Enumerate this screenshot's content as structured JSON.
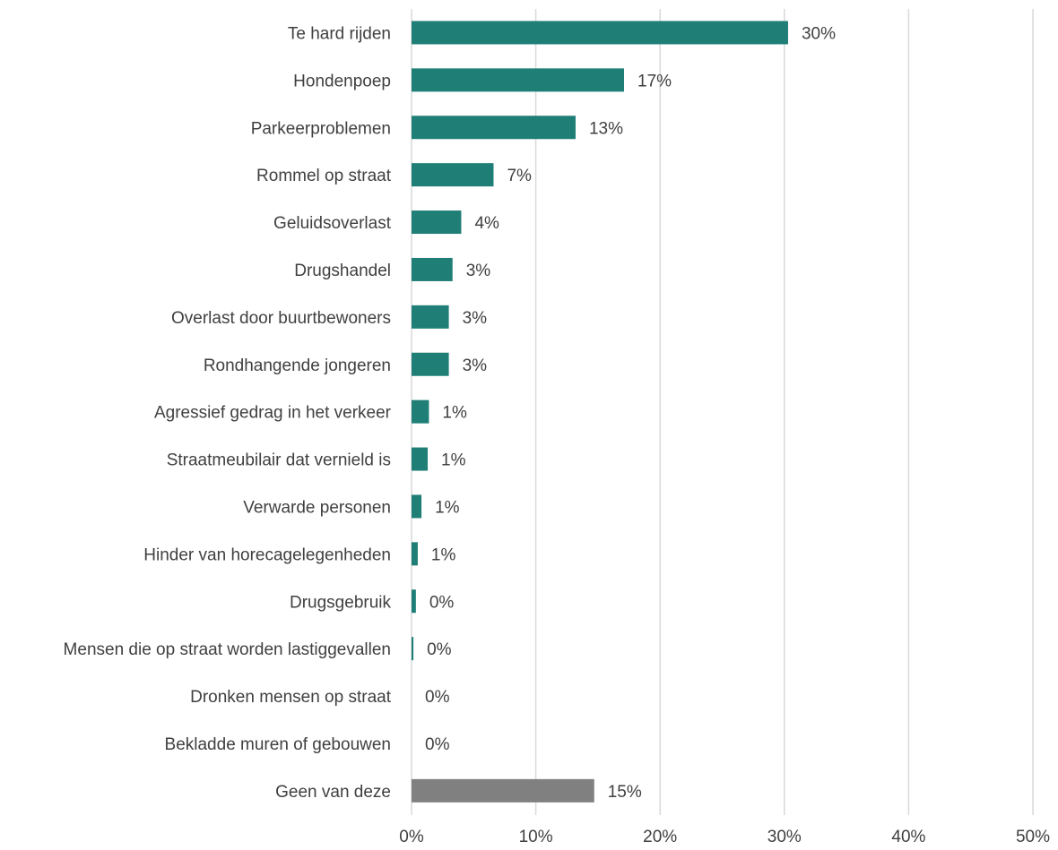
{
  "chart_data": {
    "type": "bar",
    "orientation": "horizontal",
    "title": "",
    "xlabel": "",
    "ylabel": "",
    "xlim": [
      0,
      50
    ],
    "x_ticks": [
      "0%",
      "10%",
      "20%",
      "30%",
      "40%",
      "50%"
    ],
    "grid": true,
    "legend": "none",
    "categories": [
      "Te hard rijden",
      "Hondenpoep",
      "Parkeerproblemen",
      "Rommel op straat",
      "Geluidsoverlast",
      "Drugshandel",
      "Overlast door buurtbewoners",
      "Rondhangende jongeren",
      "Agressief gedrag in het verkeer",
      "Straatmeubilair dat vernield is",
      "Verwarde personen",
      "Hinder van horecagelegenheden",
      "Drugsgebruik",
      "Mensen die op straat worden lastiggevallen",
      "Dronken mensen op straat",
      "Bekladde muren of gebouwen",
      "Geen van deze"
    ],
    "values": [
      30.3,
      17.1,
      13.2,
      6.6,
      4.0,
      3.3,
      3.0,
      3.0,
      1.4,
      1.3,
      0.8,
      0.5,
      0.35,
      0.15,
      0.0,
      0.0,
      14.7
    ],
    "value_labels": [
      "30%",
      "17%",
      "13%",
      "7%",
      "4%",
      "3%",
      "3%",
      "3%",
      "1%",
      "1%",
      "1%",
      "1%",
      "0%",
      "0%",
      "0%",
      "0%",
      "15%"
    ],
    "bar_colors": [
      "#1f7f77",
      "#1f7f77",
      "#1f7f77",
      "#1f7f77",
      "#1f7f77",
      "#1f7f77",
      "#1f7f77",
      "#1f7f77",
      "#1f7f77",
      "#1f7f77",
      "#1f7f77",
      "#1f7f77",
      "#1f7f77",
      "#1f7f77",
      "#1f7f77",
      "#1f7f77",
      "#808080"
    ]
  }
}
